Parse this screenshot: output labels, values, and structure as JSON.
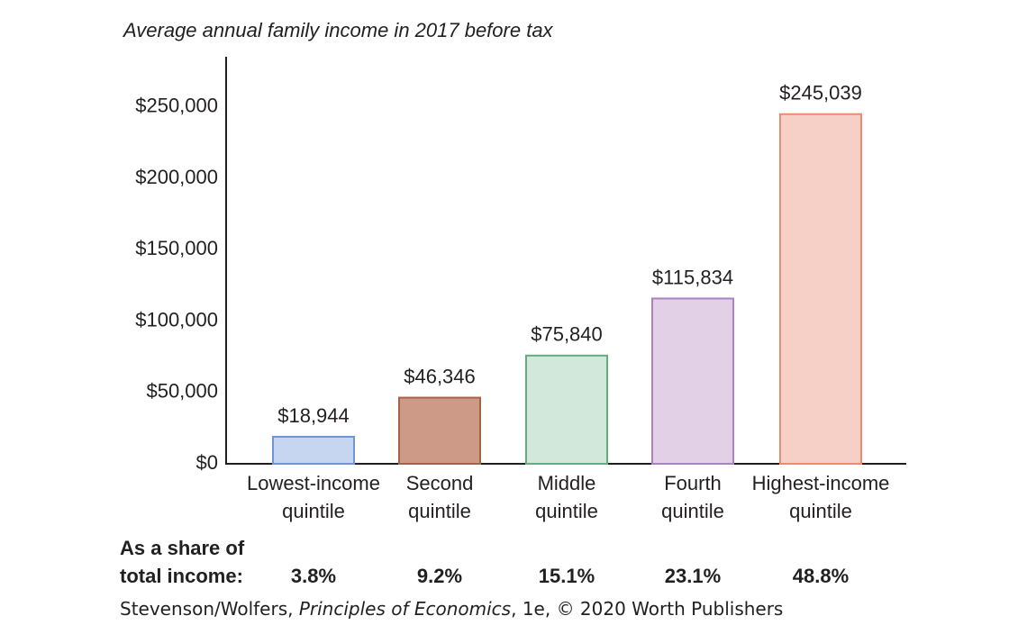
{
  "chart_data": {
    "type": "bar",
    "title": "Average annual family income in 2017 before tax",
    "categories": [
      [
        "Lowest-income",
        "quintile"
      ],
      [
        "Second",
        "quintile"
      ],
      [
        "Middle",
        "quintile"
      ],
      [
        "Fourth",
        "quintile"
      ],
      [
        "Highest-income",
        "quintile"
      ]
    ],
    "values": [
      18944,
      46346,
      75840,
      115834,
      245039
    ],
    "value_labels": [
      "$18,944",
      "$46,346",
      "$75,840",
      "$115,834",
      "$245,039"
    ],
    "colors": [
      "#c6d6f0",
      "#cc9a86",
      "#d2e8da",
      "#e2d0e7",
      "#f6d0c7"
    ],
    "edge_colors": [
      "#6f95d6",
      "#a5644a",
      "#61ad7f",
      "#aa82c1",
      "#ec8c6c"
    ],
    "ylim": [
      0,
      284000
    ],
    "yticks": [
      {
        "value": 0,
        "label": "$0"
      },
      {
        "value": 50000,
        "label": "$50,000"
      },
      {
        "value": 100000,
        "label": "$100,000"
      },
      {
        "value": 150000,
        "label": "$150,000"
      },
      {
        "value": 200000,
        "label": "$200,000"
      },
      {
        "value": 250000,
        "label": "$250,000"
      }
    ],
    "share_title": [
      "As a share of",
      "total income:"
    ],
    "share_labels": [
      "3.8%",
      "9.2%",
      "15.1%",
      "23.1%",
      "48.8%"
    ],
    "source": [
      "Stevenson/Wolfers, ",
      "Principles of Economics",
      ", 1e, © 2020 Worth Publishers"
    ]
  }
}
